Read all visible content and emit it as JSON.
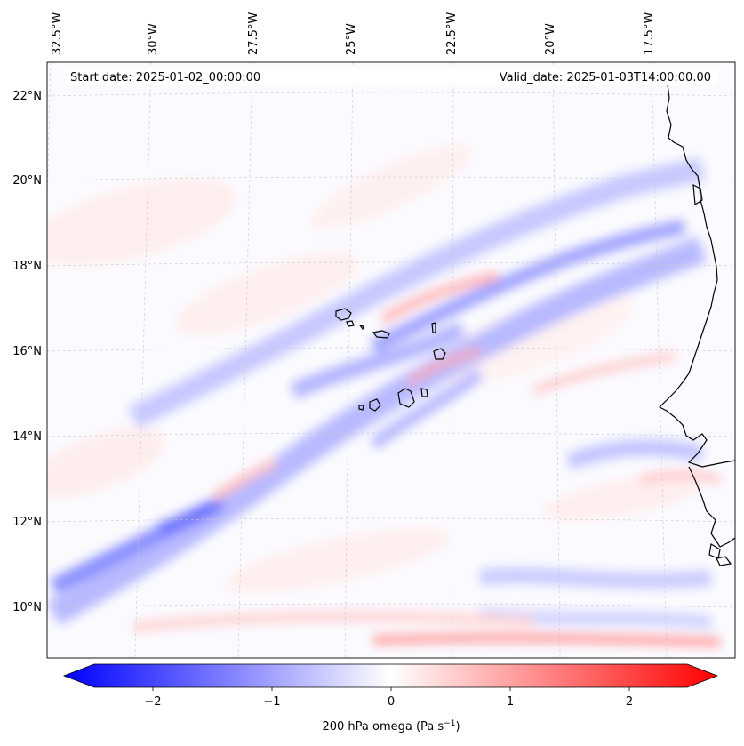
{
  "map": {
    "start_date": "Start date: 2025-01-02_00:00:00",
    "valid_date": "Valid_date: 2025-01-03T14:00:00.00",
    "lon_labels": [
      "32.5°W",
      "30°W",
      "27.5°W",
      "25°W",
      "22.5°W",
      "20°W",
      "17.5°W"
    ],
    "lat_labels": [
      "22°N",
      "20°N",
      "18°N",
      "16°N",
      "14°N",
      "12°N",
      "10°N"
    ],
    "colorbar": {
      "ticks": [
        "−2",
        "−1",
        "0",
        "1",
        "2"
      ],
      "label_main": "200 hPa omega (Pa s",
      "label_sup": "−1",
      "label_end": ")",
      "range": [
        -2.75,
        2.75
      ],
      "cmap": "bwr"
    },
    "colors": {
      "negative": "#0000ff",
      "positive": "#ff0000",
      "zero": "#ffffff",
      "coastline": "#000000"
    }
  }
}
